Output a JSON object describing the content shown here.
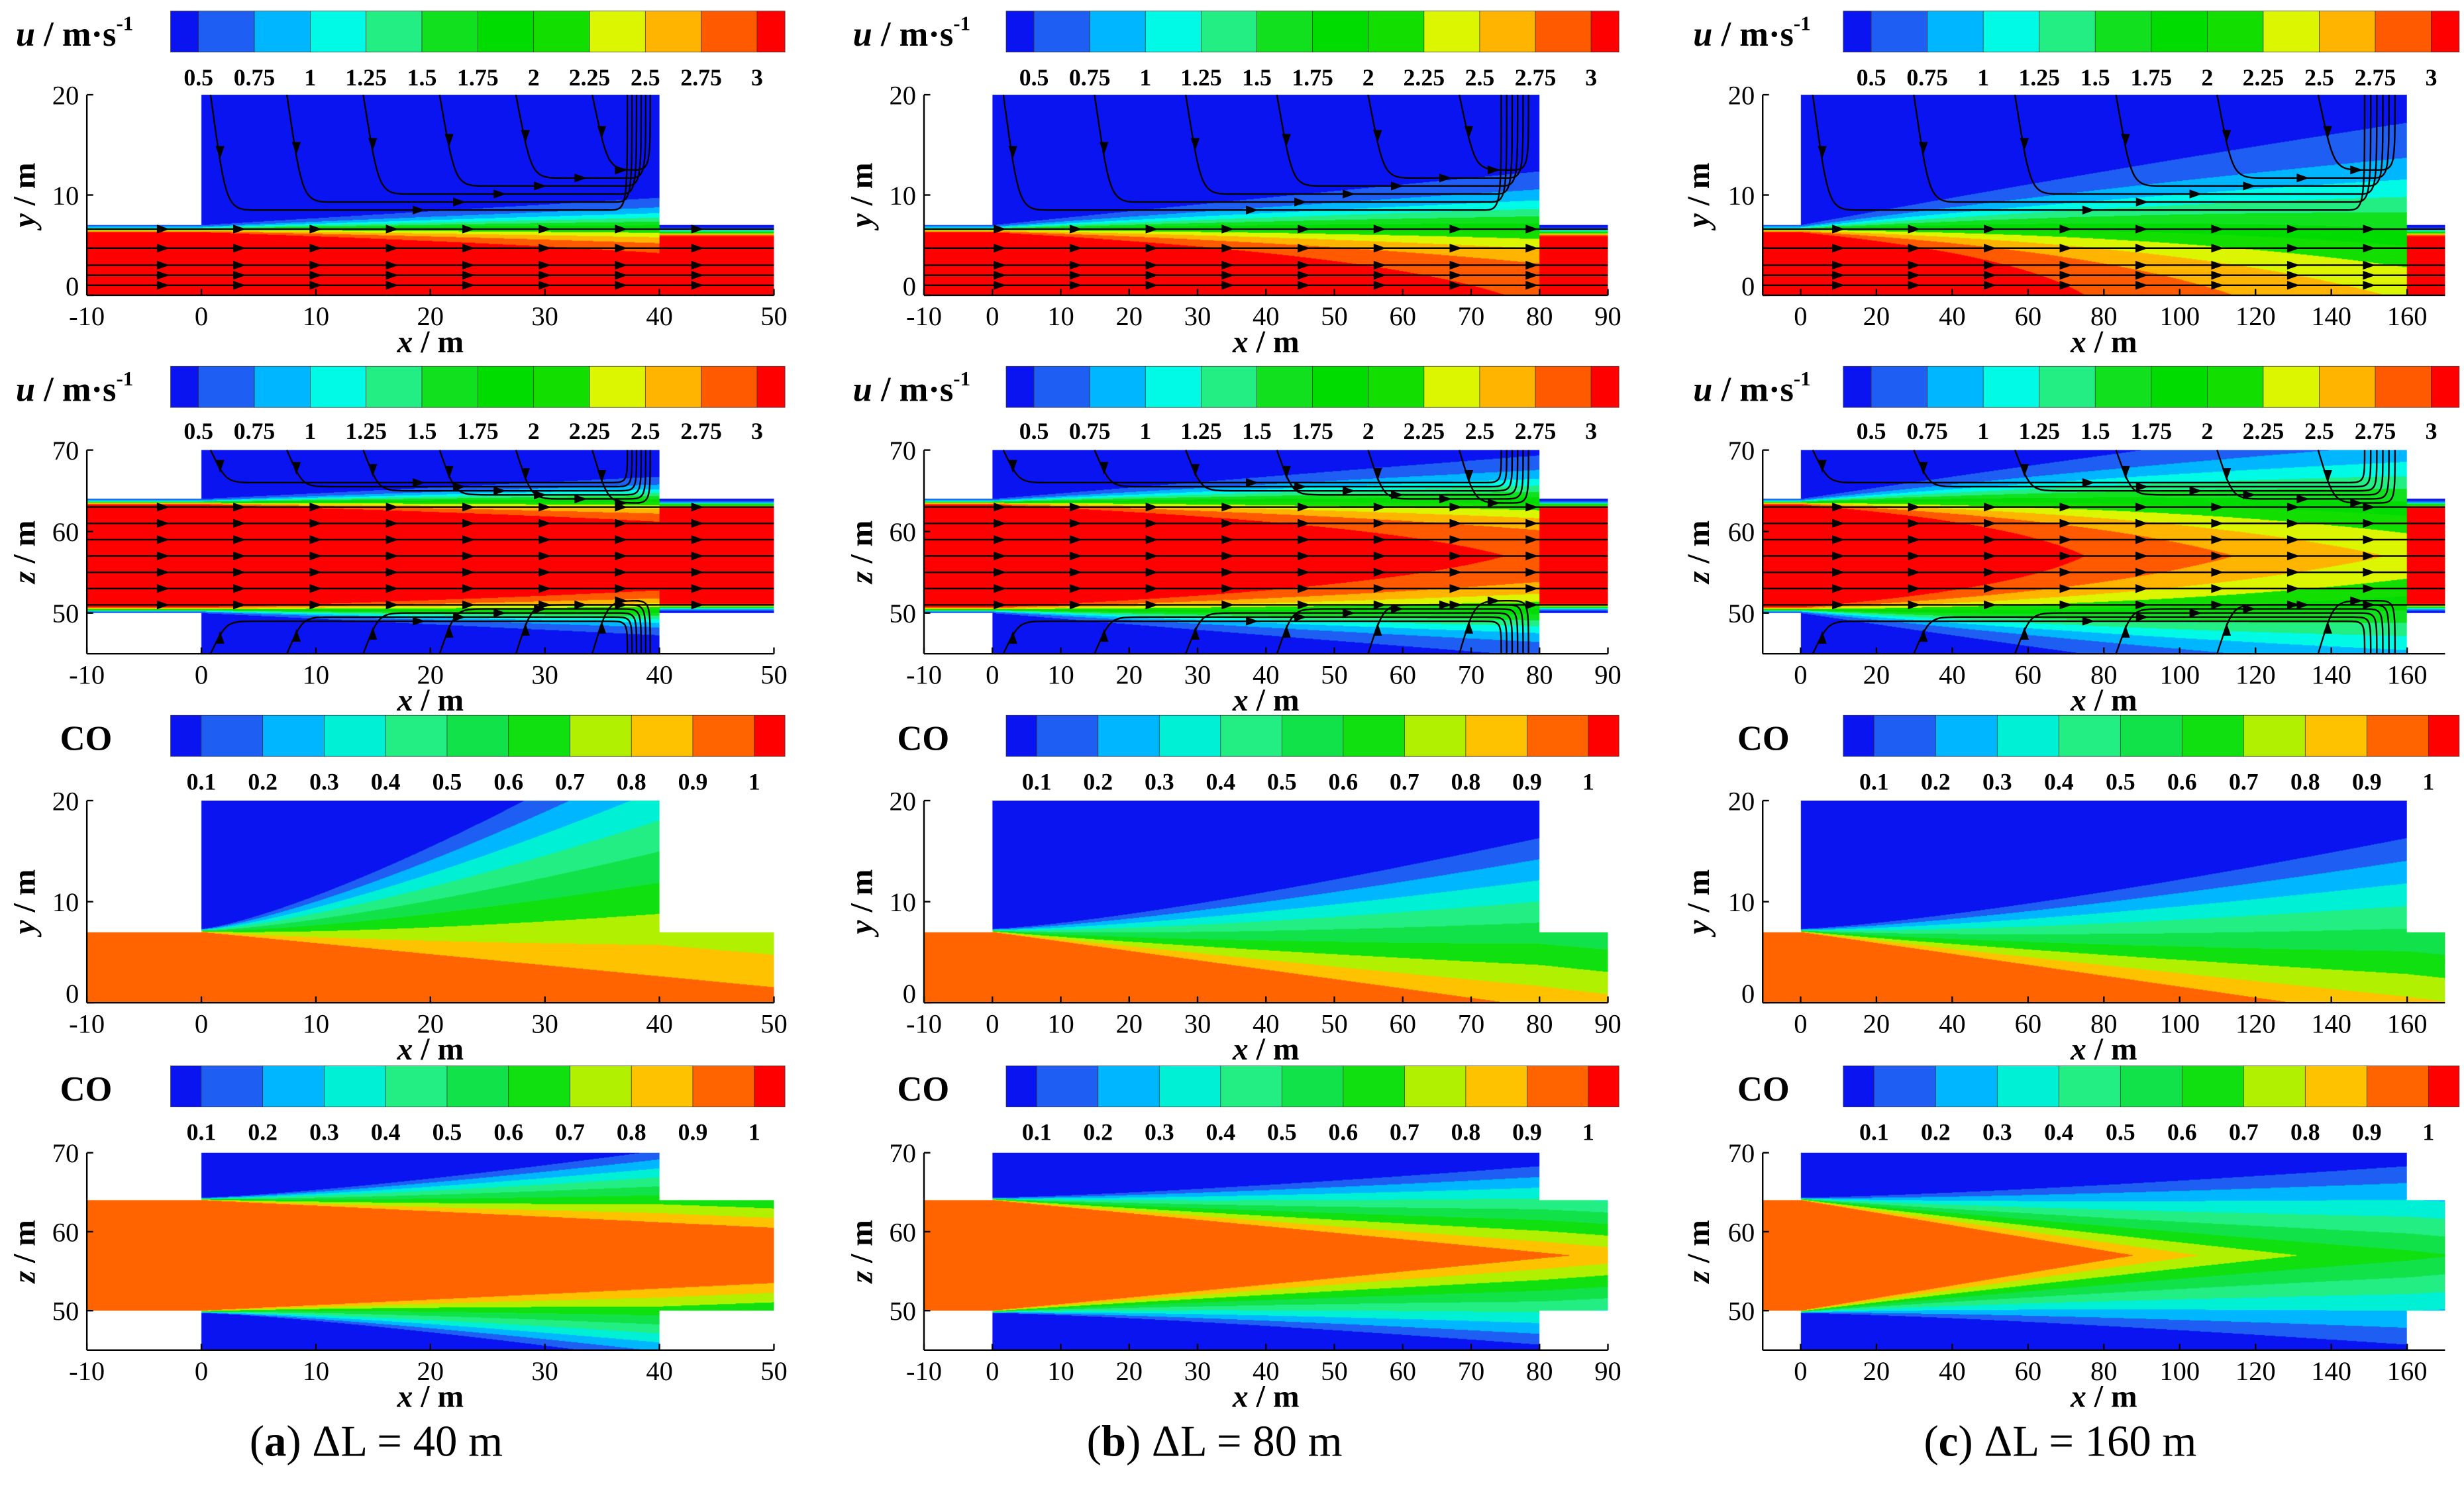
{
  "columns": [
    {
      "letter": "a",
      "caption": "ΔL = 40 m",
      "dL": 40,
      "x_range": [
        -10,
        50
      ],
      "x_ticks": [
        -10,
        0,
        10,
        20,
        30,
        40,
        50
      ]
    },
    {
      "letter": "b",
      "caption": "ΔL = 80 m",
      "dL": 80,
      "x_range": [
        -10,
        90
      ],
      "x_ticks": [
        -10,
        0,
        10,
        20,
        30,
        40,
        50,
        60,
        70,
        80,
        90
      ]
    },
    {
      "letter": "c",
      "caption": "ΔL = 160 m",
      "dL": 160,
      "x_range": [
        -10,
        170
      ],
      "x_ticks": [
        0,
        20,
        40,
        60,
        80,
        100,
        120,
        140,
        160
      ]
    }
  ],
  "colorbars": {
    "u": {
      "var": "u",
      "unit": " / m·s",
      "sup": "-1",
      "ticks": [
        "0.5",
        "0.75",
        "1",
        "1.25",
        "1.5",
        "1.75",
        "2",
        "2.25",
        "2.5",
        "2.75",
        "3"
      ],
      "colors": [
        "#0a14f0",
        "#1e5ef2",
        "#00b6ff",
        "#00fae6",
        "#22ee84",
        "#10e01e",
        "#00dc00",
        "#12de00",
        "#dcf500",
        "#ffb400",
        "#ff5a00",
        "#ff0000"
      ]
    },
    "co": {
      "var": "CO",
      "ticks": [
        "0.1",
        "0.2",
        "0.3",
        "0.4",
        "0.5",
        "0.6",
        "0.7",
        "0.8",
        "0.9",
        "1"
      ],
      "colors": [
        "#0a14f0",
        "#1e5ef2",
        "#00b6ff",
        "#00f0d6",
        "#22ee84",
        "#12e24a",
        "#10e010",
        "#b0f000",
        "#ffc200",
        "#ff6400",
        "#ff0000"
      ]
    }
  },
  "axes": {
    "xlabel": {
      "var": "x",
      "unit": " / m"
    },
    "ylabel": {
      "var": "y",
      "unit": " / m"
    },
    "zlabel": {
      "var": "z",
      "unit": " / m"
    },
    "y_ticks": [
      0,
      10,
      20
    ],
    "z_ticks": [
      50,
      60,
      70
    ]
  },
  "chart_data": [
    {
      "type": "heatmap",
      "variable": "u",
      "plane": "x-y",
      "dL": 40,
      "xlim": [
        -10,
        50
      ],
      "ylim": [
        0,
        20
      ],
      "levels": [
        0.5,
        0.75,
        1,
        1.25,
        1.5,
        1.75,
        2,
        2.25,
        2.5,
        2.75,
        3
      ],
      "streamlines": true
    },
    {
      "type": "heatmap",
      "variable": "u",
      "plane": "x-y",
      "dL": 80,
      "xlim": [
        -10,
        90
      ],
      "ylim": [
        0,
        20
      ],
      "levels": [
        0.5,
        0.75,
        1,
        1.25,
        1.5,
        1.75,
        2,
        2.25,
        2.5,
        2.75,
        3
      ],
      "streamlines": true
    },
    {
      "type": "heatmap",
      "variable": "u",
      "plane": "x-y",
      "dL": 160,
      "xlim": [
        -10,
        170
      ],
      "ylim": [
        0,
        20
      ],
      "levels": [
        0.5,
        0.75,
        1,
        1.25,
        1.5,
        1.75,
        2,
        2.25,
        2.5,
        2.75,
        3
      ],
      "streamlines": true
    },
    {
      "type": "heatmap",
      "variable": "u",
      "plane": "x-z",
      "dL": 40,
      "xlim": [
        -10,
        50
      ],
      "ylim": [
        45,
        70
      ],
      "levels": [
        0.5,
        0.75,
        1,
        1.25,
        1.5,
        1.75,
        2,
        2.25,
        2.5,
        2.75,
        3
      ],
      "streamlines": true
    },
    {
      "type": "heatmap",
      "variable": "u",
      "plane": "x-z",
      "dL": 80,
      "xlim": [
        -10,
        90
      ],
      "ylim": [
        45,
        70
      ],
      "levels": [
        0.5,
        0.75,
        1,
        1.25,
        1.5,
        1.75,
        2,
        2.25,
        2.5,
        2.75,
        3
      ],
      "streamlines": true
    },
    {
      "type": "heatmap",
      "variable": "u",
      "plane": "x-z",
      "dL": 160,
      "xlim": [
        -10,
        170
      ],
      "ylim": [
        45,
        70
      ],
      "levels": [
        0.5,
        0.75,
        1,
        1.25,
        1.5,
        1.75,
        2,
        2.25,
        2.5,
        2.75,
        3
      ],
      "streamlines": true
    },
    {
      "type": "heatmap",
      "variable": "CO",
      "plane": "x-y",
      "dL": 40,
      "xlim": [
        -10,
        50
      ],
      "ylim": [
        0,
        20
      ],
      "levels": [
        0.1,
        0.2,
        0.3,
        0.4,
        0.5,
        0.6,
        0.7,
        0.8,
        0.9,
        1
      ]
    },
    {
      "type": "heatmap",
      "variable": "CO",
      "plane": "x-y",
      "dL": 80,
      "xlim": [
        -10,
        90
      ],
      "ylim": [
        0,
        20
      ],
      "levels": [
        0.1,
        0.2,
        0.3,
        0.4,
        0.5,
        0.6,
        0.7,
        0.8,
        0.9,
        1
      ]
    },
    {
      "type": "heatmap",
      "variable": "CO",
      "plane": "x-y",
      "dL": 160,
      "xlim": [
        -10,
        170
      ],
      "ylim": [
        0,
        20
      ],
      "levels": [
        0.1,
        0.2,
        0.3,
        0.4,
        0.5,
        0.6,
        0.7,
        0.8,
        0.9,
        1
      ]
    },
    {
      "type": "heatmap",
      "variable": "CO",
      "plane": "x-z",
      "dL": 40,
      "xlim": [
        -10,
        50
      ],
      "ylim": [
        45,
        70
      ],
      "levels": [
        0.1,
        0.2,
        0.3,
        0.4,
        0.5,
        0.6,
        0.7,
        0.8,
        0.9,
        1
      ]
    },
    {
      "type": "heatmap",
      "variable": "CO",
      "plane": "x-z",
      "dL": 80,
      "xlim": [
        -10,
        90
      ],
      "ylim": [
        45,
        70
      ],
      "levels": [
        0.1,
        0.2,
        0.3,
        0.4,
        0.5,
        0.6,
        0.7,
        0.8,
        0.9,
        1
      ]
    },
    {
      "type": "heatmap",
      "variable": "CO",
      "plane": "x-z",
      "dL": 160,
      "xlim": [
        -10,
        170
      ],
      "ylim": [
        45,
        70
      ],
      "levels": [
        0.1,
        0.2,
        0.3,
        0.4,
        0.5,
        0.6,
        0.7,
        0.8,
        0.9,
        1
      ]
    }
  ]
}
